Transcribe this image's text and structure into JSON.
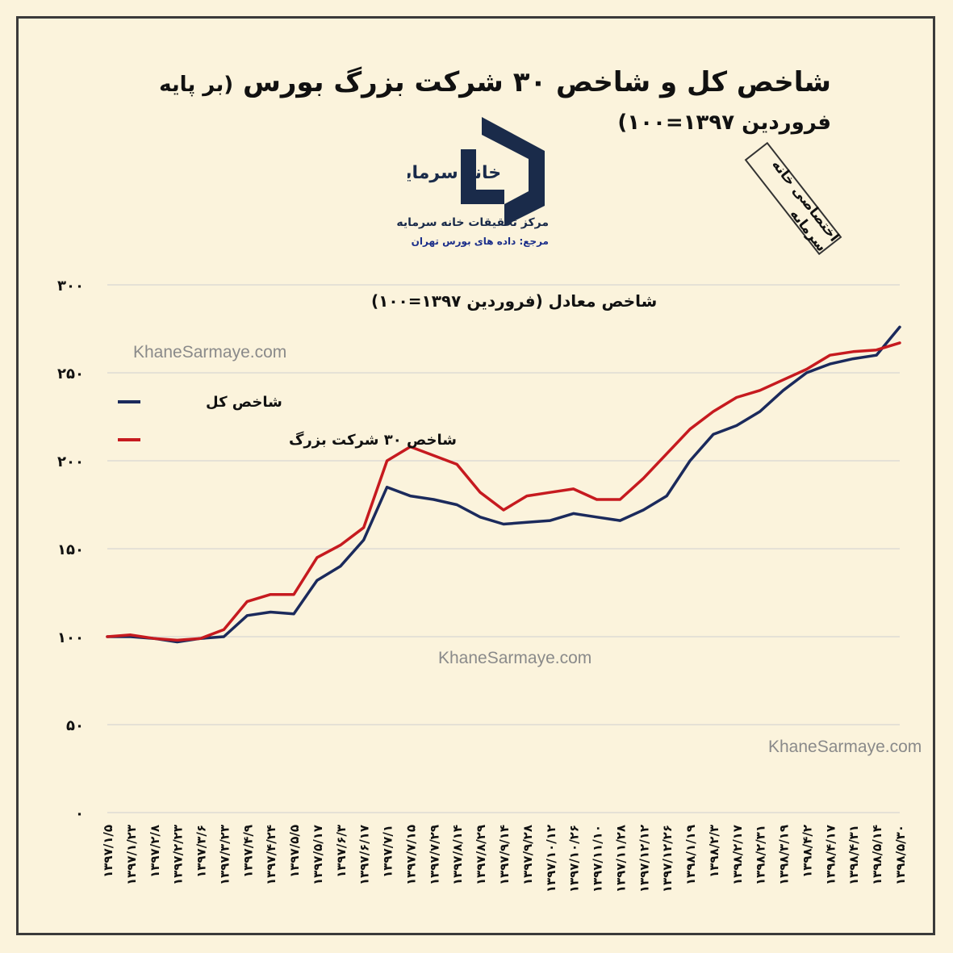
{
  "header": {
    "title_main": "شاخص کل و شاخص ۳۰ شرکت بزرگ بورس",
    "title_paren": "(بر پایه فروردین ۱۳۹۷=۱۰۰)"
  },
  "logo": {
    "wordmark": "خانه سرمایه",
    "subtitle": "مرکز تحقیقات خانه سرمایه",
    "reference": "مرجع: داده های بورس تهران",
    "color": "#1a2b4a"
  },
  "stamp": {
    "text": "اختصاصی خانه سرمایه"
  },
  "watermarks": [
    "KhaneSarmaye.com",
    "KhaneSarmaye.com",
    "KhaneSarmaye.com"
  ],
  "chart_data": {
    "type": "line",
    "ylabel": "شاخص معادل (فروردین ۱۳۹۷=۱۰۰)",
    "ylim": [
      0,
      300
    ],
    "yticks": [
      0,
      50,
      100,
      150,
      200,
      250,
      300
    ],
    "ytick_labels": [
      "۰",
      "۵۰",
      "۱۰۰",
      "۱۵۰",
      "۲۰۰",
      "۲۵۰",
      "۳۰۰"
    ],
    "grid": true,
    "legend_position": "top-left",
    "categories": [
      "۱۳۹۷/۱/۵",
      "۱۳۹۷/۱/۲۳",
      "۱۳۹۷/۲/۸",
      "۱۳۹۷/۲/۲۳",
      "۱۳۹۷/۳/۶",
      "۱۳۹۷/۳/۲۳",
      "۱۳۹۷/۴/۹",
      "۱۳۹۷/۴/۲۴",
      "۱۳۹۷/۵/۵",
      "۱۳۹۷/۵/۱۷",
      "۱۳۹۷/۶/۳",
      "۱۳۹۷/۶/۱۷",
      "۱۳۹۷/۷/۱",
      "۱۳۹۷/۷/۱۵",
      "۱۳۹۷/۷/۲۹",
      "۱۳۹۷/۸/۱۴",
      "۱۳۹۷/۸/۲۹",
      "۱۳۹۷/۹/۱۴",
      "۱۳۹۷/۹/۲۸",
      "۱۳۹۷/۱۰/۱۲",
      "۱۳۹۷/۱۰/۲۶",
      "۱۳۹۷/۱۱/۱۰",
      "۱۳۹۷/۱۱/۲۸",
      "۱۳۹۷/۱۲/۱۲",
      "۱۳۹۷/۱۲/۲۶",
      "۱۳۹۸/۱/۱۹",
      "۱۳۹۸/۲/۳",
      "۱۳۹۸/۲/۱۷",
      "۱۳۹۸/۲/۳۱",
      "۱۳۹۸/۳/۱۹",
      "۱۳۹۸/۴/۲",
      "۱۳۹۸/۴/۱۷",
      "۱۳۹۸/۴/۳۱",
      "۱۳۹۸/۵/۱۴",
      "۱۳۹۸/۵/۳۰"
    ],
    "series": [
      {
        "name": "شاخص کل",
        "color": "#1b2a5c",
        "values": [
          100,
          100,
          99,
          97,
          99,
          100,
          112,
          114,
          113,
          132,
          140,
          155,
          185,
          180,
          178,
          175,
          168,
          164,
          165,
          166,
          170,
          168,
          166,
          172,
          180,
          200,
          215,
          220,
          228,
          240,
          250,
          255,
          258,
          260,
          276
        ]
      },
      {
        "name": "شاخص ۳۰ شرکت بزرگ",
        "color": "#c61a1f",
        "values": [
          100,
          101,
          99,
          98,
          99,
          104,
          120,
          124,
          124,
          145,
          152,
          162,
          200,
          208,
          203,
          198,
          182,
          172,
          180,
          182,
          184,
          178,
          178,
          190,
          204,
          218,
          228,
          236,
          240,
          246,
          252,
          260,
          262,
          263,
          267
        ]
      }
    ]
  }
}
